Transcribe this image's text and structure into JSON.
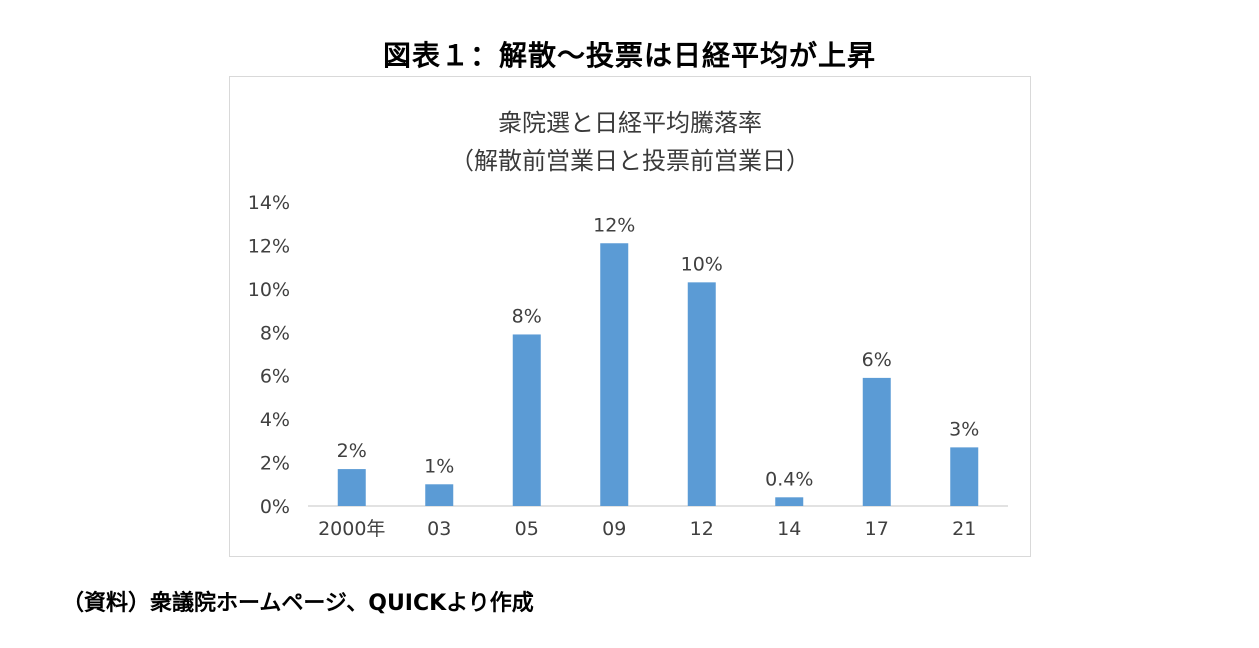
{
  "figure": {
    "title": "図表１：解散～投票は日経平均が上昇",
    "source": "（資料）衆議院ホームページ、QUICKより作成"
  },
  "colors": {
    "bar": "#5b9bd5",
    "axis": "#d9d9d9",
    "text": "#404040"
  },
  "chart_data": {
    "type": "bar",
    "title": "衆院選と日経平均騰落率",
    "subtitle": "（解散前営業日と投票前営業日）",
    "categories": [
      "2000年",
      "03",
      "05",
      "09",
      "12",
      "14",
      "17",
      "21"
    ],
    "values": [
      1.7,
      1.0,
      7.9,
      12.1,
      10.3,
      0.4,
      5.9,
      2.7
    ],
    "data_labels": [
      "2%",
      "1%",
      "8%",
      "12%",
      "10%",
      "0.4%",
      "6%",
      "3%"
    ],
    "yticks": [
      "0%",
      "2%",
      "4%",
      "6%",
      "8%",
      "10%",
      "12%",
      "14%"
    ],
    "ylim": [
      0,
      14
    ],
    "grid": false,
    "legend": "none"
  }
}
